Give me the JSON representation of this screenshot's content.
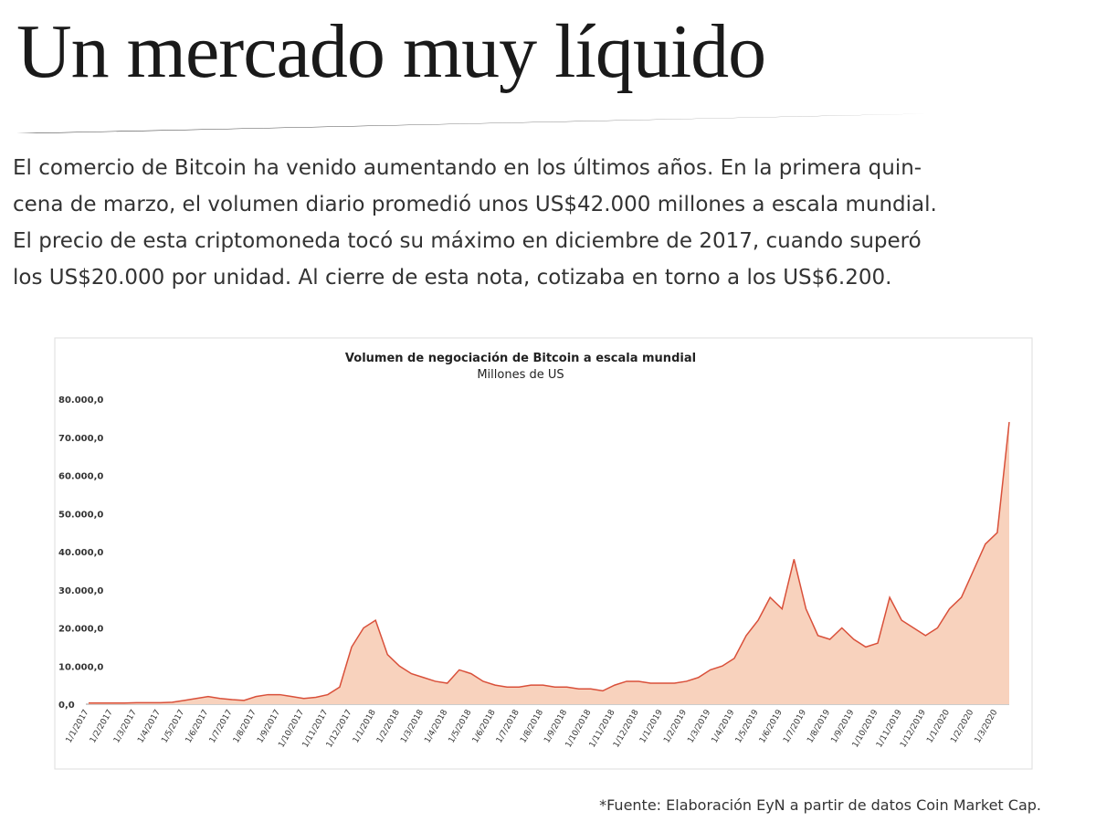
{
  "header": {
    "title": "Un mercado muy líquido"
  },
  "paragraph": [
    "El comercio de Bitcoin ha venido aumentando en los últimos años. En la primera quin-",
    "cena de marzo, el volumen diario promedió unos US$42.000 millones a escala mundial.",
    "El precio de esta criptomoneda tocó su máximo en diciembre de 2017, cuando superó",
    "los US$20.000 por unidad. Al cierre de esta nota, cotizaba en torno a los US$6.200."
  ],
  "source": "*Fuente: Elaboración EyN a partir de datos Coin Market Cap.",
  "chart_data": {
    "type": "area",
    "title": "Volumen de negociación de Bitcoin a escala mundial",
    "subtitle": "Millones de US",
    "categories": [
      "1/1/2017",
      null,
      "1/2/2017",
      null,
      "1/3/2017",
      null,
      "1/4/2017",
      null,
      "1/5/2017",
      null,
      "1/6/2017",
      null,
      "1/7/2017",
      null,
      "1/8/2017",
      null,
      "1/9/2017",
      null,
      "1/10/2017",
      null,
      "1/11/2017",
      null,
      "1/12/2017",
      null,
      "1/1/2018",
      null,
      "1/2/2018",
      null,
      "1/3/2018",
      null,
      "1/4/2018",
      null,
      "1/5/2018",
      null,
      "1/6/2018",
      null,
      "1/7/2018",
      null,
      "1/8/2018",
      null,
      "1/9/2018",
      null,
      "1/10/2018",
      null,
      "1/11/2018",
      null,
      "1/12/2018",
      null,
      "1/1/2019",
      null,
      "1/2/2019",
      null,
      "1/3/2019",
      null,
      "1/4/2019",
      null,
      "1/5/2019",
      null,
      "1/6/2019",
      null,
      "1/7/2019",
      null,
      "1/8/2019",
      null,
      "1/9/2019",
      null,
      "1/10/2019",
      null,
      "1/11/2019",
      null,
      "1/12/2019",
      null,
      "1/1/2020",
      null,
      "1/2/2020",
      null,
      "1/3/2020",
      null
    ],
    "values": [
      300,
      300,
      300,
      300,
      400,
      400,
      400,
      500,
      1000,
      1500,
      2000,
      1500,
      1200,
      1000,
      2000,
      2500,
      2500,
      2000,
      1500,
      1800,
      2500,
      4500,
      15000,
      20000,
      22000,
      13000,
      10000,
      8000,
      7000,
      6000,
      5500,
      9000,
      8000,
      6000,
      5000,
      4500,
      4500,
      5000,
      5000,
      4500,
      4500,
      4000,
      4000,
      3500,
      5000,
      6000,
      6000,
      5500,
      5500,
      5500,
      6000,
      7000,
      9000,
      10000,
      12000,
      18000,
      22000,
      28000,
      25000,
      38000,
      25000,
      18000,
      17000,
      20000,
      17000,
      15000,
      16000,
      28000,
      22000,
      20000,
      18000,
      20000,
      25000,
      28000,
      35000,
      42000,
      45000,
      74000
    ],
    "line_color": "#d9503a",
    "fill_color": "#f8d2bd",
    "ylim": [
      0,
      80000
    ],
    "yticks": [
      {
        "value": 0,
        "label": "0,0"
      },
      {
        "value": 10000,
        "label": "10.000,0"
      },
      {
        "value": 20000,
        "label": "20.000,0"
      },
      {
        "value": 30000,
        "label": "30.000,0"
      },
      {
        "value": 40000,
        "label": "40.000,0"
      },
      {
        "value": 50000,
        "label": "50.000,0"
      },
      {
        "value": 60000,
        "label": "60.000,0"
      },
      {
        "value": 70000,
        "label": "70.000,0"
      },
      {
        "value": 80000,
        "label": "80.000,0"
      }
    ]
  }
}
